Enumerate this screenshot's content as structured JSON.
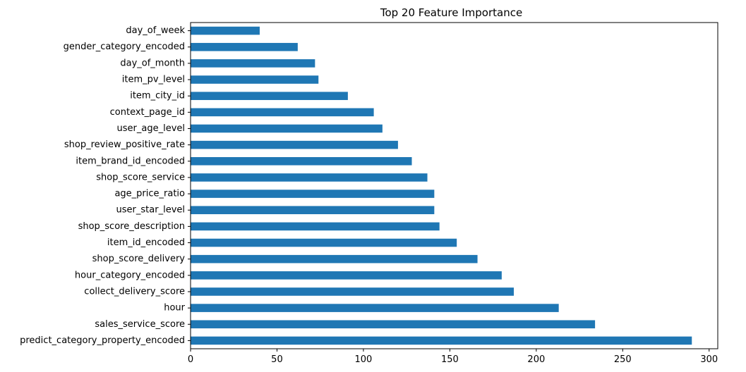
{
  "chart_data": {
    "type": "bar",
    "orientation": "horizontal",
    "title": "Top 20 Feature Importance",
    "xlabel": "",
    "ylabel": "",
    "xlim": [
      0,
      305
    ],
    "xticks": [
      0,
      50,
      100,
      150,
      200,
      250,
      300
    ],
    "grid": false,
    "legend": "none",
    "bar_color": "#1f77b4",
    "categories": [
      "day_of_week",
      "gender_category_encoded",
      "day_of_month",
      "item_pv_level",
      "item_city_id",
      "context_page_id",
      "user_age_level",
      "shop_review_positive_rate",
      "item_brand_id_encoded",
      "shop_score_service",
      "age_price_ratio",
      "user_star_level",
      "shop_score_description",
      "item_id_encoded",
      "shop_score_delivery",
      "hour_category_encoded",
      "collect_delivery_score",
      "hour",
      "sales_service_score",
      "predict_category_property_encoded"
    ],
    "values": [
      40,
      62,
      72,
      74,
      91,
      106,
      111,
      120,
      128,
      137,
      141,
      141,
      144,
      154,
      166,
      180,
      187,
      213,
      234,
      290
    ]
  }
}
